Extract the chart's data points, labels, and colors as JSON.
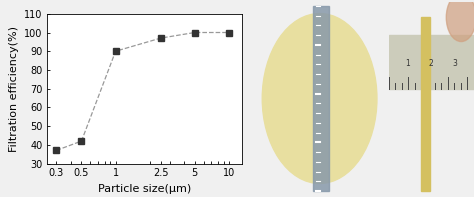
{
  "x": [
    0.3,
    0.5,
    1,
    2.5,
    5,
    10
  ],
  "y": [
    37,
    42,
    90,
    97,
    100,
    100
  ],
  "xtick_labels": [
    "0.3",
    "0.5",
    "1",
    "2.5",
    "5",
    "10"
  ],
  "xlabel": "Particle size(μm)",
  "ylabel": "Filtration efficiency(%)",
  "ylim": [
    30,
    110
  ],
  "yticks": [
    30,
    40,
    50,
    60,
    70,
    80,
    90,
    100,
    110
  ],
  "line_color": "#999999",
  "marker": "s",
  "marker_color": "#333333",
  "marker_size": 4,
  "line_style": "--",
  "background_color": "#f0f0f0",
  "plot_bg_color": "#ffffff",
  "xlabel_fontsize": 8,
  "ylabel_fontsize": 8,
  "tick_fontsize": 7,
  "photo1_bg": "#111111",
  "photo2_bg": "#1a1a1a",
  "circle_color": "#e8dfa0",
  "ruler_color": "#8899aa",
  "strip_color": "#d4c060",
  "ruler2_color": "#ccccbb",
  "gap_color": "#f0f0f0"
}
